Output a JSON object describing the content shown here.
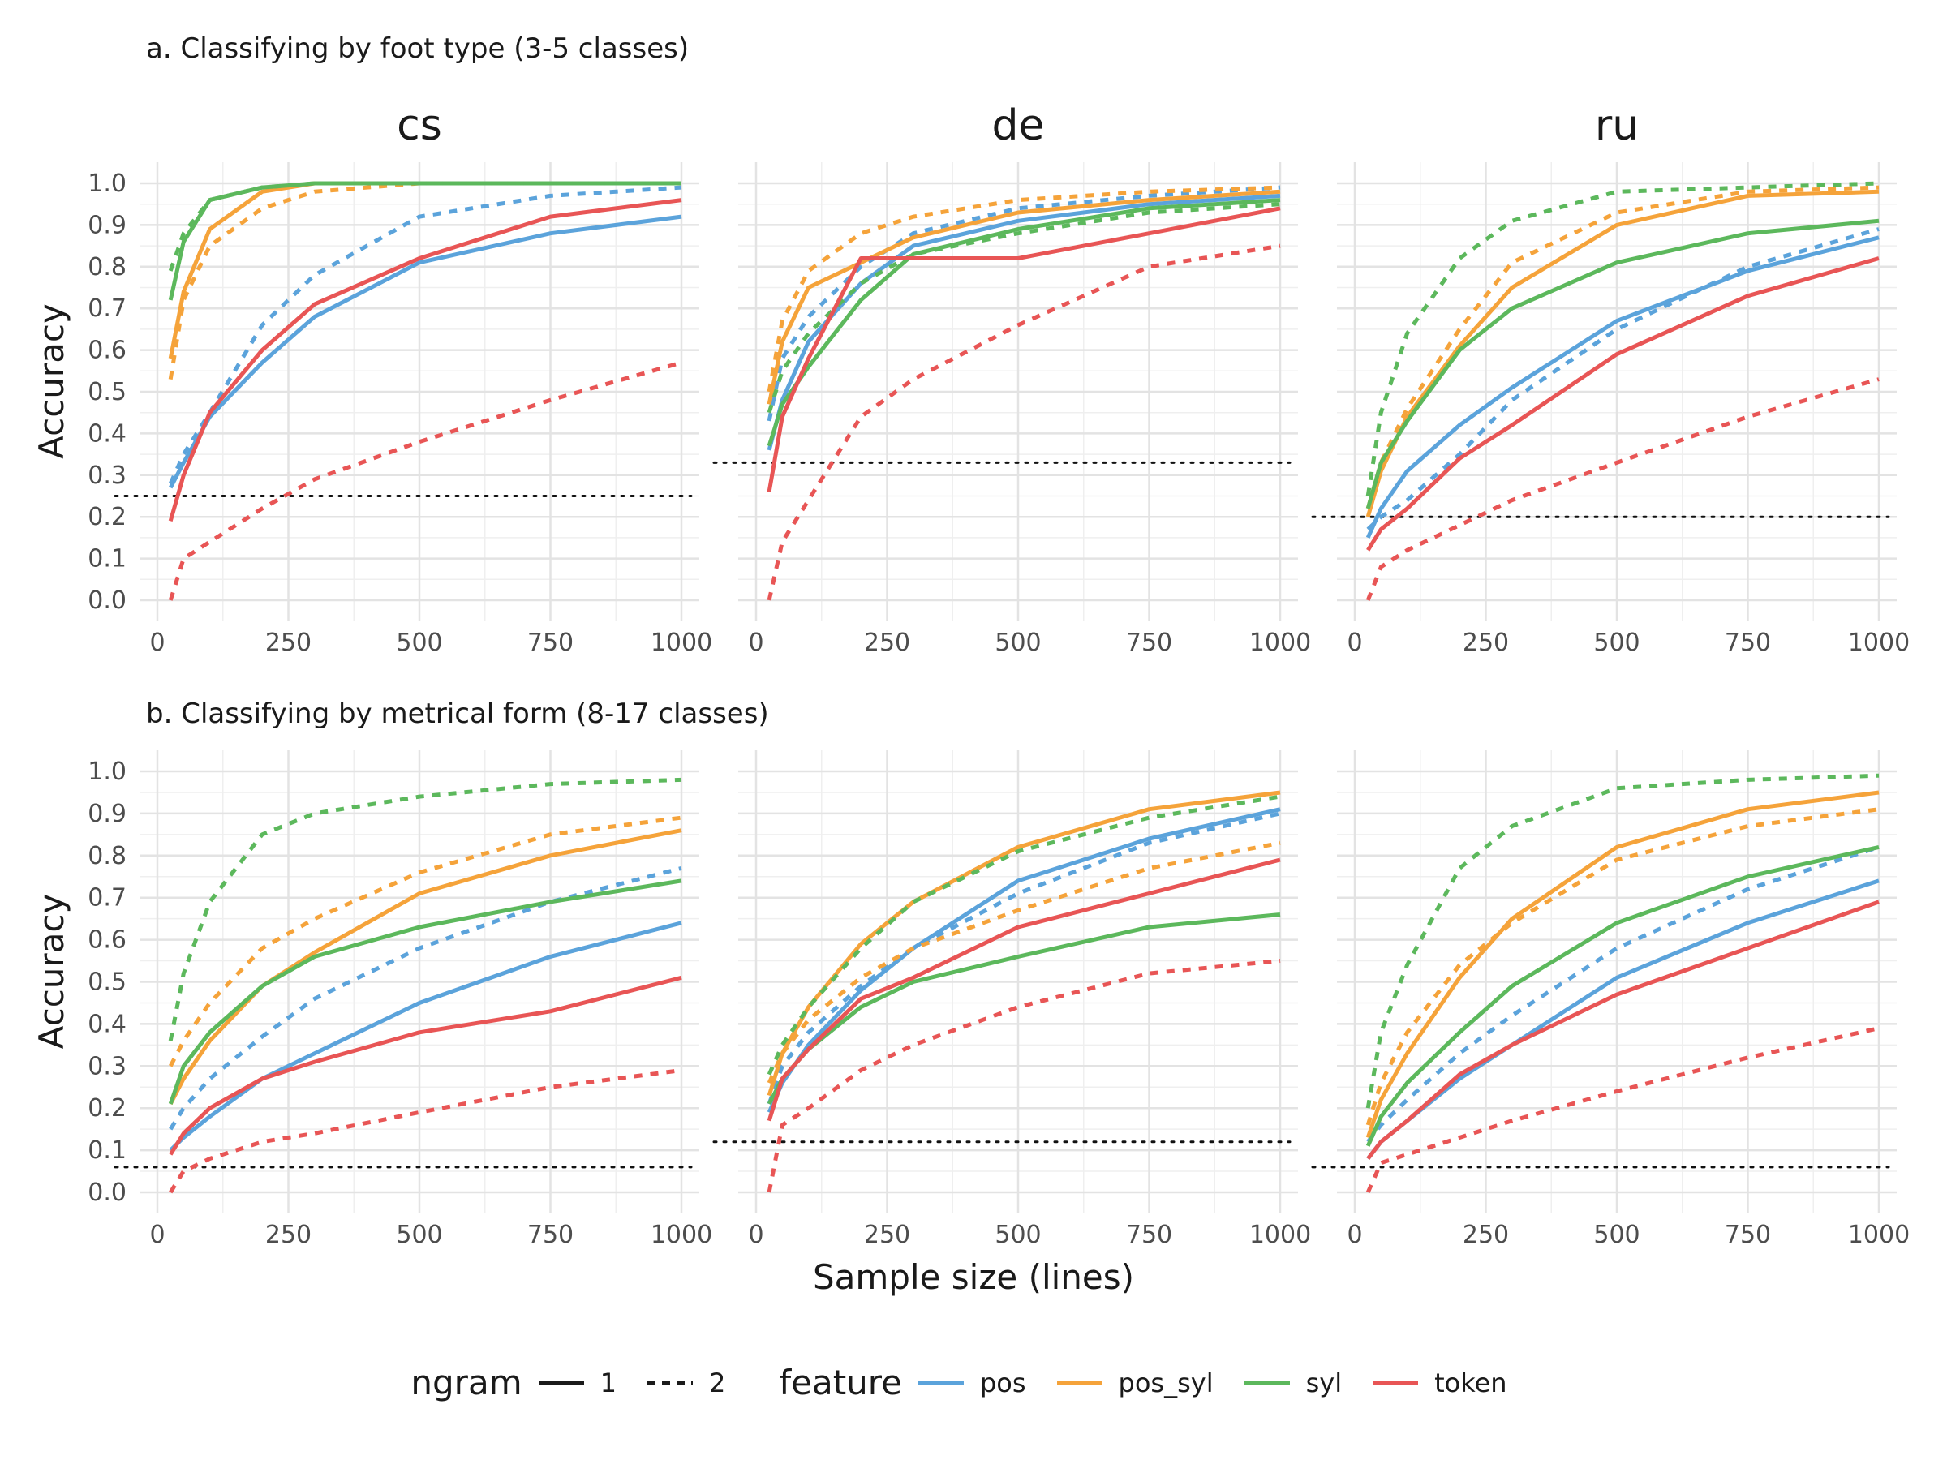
{
  "row_titles": [
    "a. Classifying by foot type (3-5 classes)",
    "b. Classifying by metrical form (8-17 classes)"
  ],
  "xlabel": "Sample size (lines)",
  "ylabel": "Accuracy",
  "legend": {
    "ngram_title": "ngram",
    "ngram_items": [
      {
        "label": "1",
        "linetype": "solid"
      },
      {
        "label": "2",
        "linetype": "dashed"
      }
    ],
    "feature_title": "feature",
    "feature_items": [
      {
        "label": "pos",
        "color": "#5BA3DB"
      },
      {
        "label": "pos_syl",
        "color": "#F5A33A"
      },
      {
        "label": "syl",
        "color": "#5CB85C"
      },
      {
        "label": "token",
        "color": "#E85555"
      }
    ]
  },
  "chart_data": [
    {
      "type": "line",
      "row": "a",
      "facet": "cs",
      "xlim": [
        0,
        1000
      ],
      "ylim": [
        0,
        1
      ],
      "x_ticks": [
        "0",
        "250",
        "500",
        "750",
        "1000"
      ],
      "y_ticks": [
        "0.0",
        "0.1",
        "0.2",
        "0.3",
        "0.4",
        "0.5",
        "0.6",
        "0.7",
        "0.8",
        "0.9",
        "1.0"
      ],
      "x": [
        25,
        50,
        100,
        200,
        300,
        500,
        750,
        1000
      ],
      "baseline": 0.25,
      "series": [
        {
          "name": "pos",
          "ngram": "1",
          "values": [
            0.27,
            0.33,
            0.44,
            0.57,
            0.68,
            0.81,
            0.88,
            0.92
          ]
        },
        {
          "name": "pos",
          "ngram": "2",
          "values": [
            0.28,
            0.35,
            0.45,
            0.66,
            0.78,
            0.92,
            0.97,
            0.99
          ]
        },
        {
          "name": "pos_syl",
          "ngram": "1",
          "values": [
            0.58,
            0.74,
            0.89,
            0.98,
            1.0,
            1.0,
            1.0,
            1.0
          ]
        },
        {
          "name": "pos_syl",
          "ngram": "2",
          "values": [
            0.53,
            0.72,
            0.85,
            0.94,
            0.98,
            1.0,
            1.0,
            1.0
          ]
        },
        {
          "name": "syl",
          "ngram": "1",
          "values": [
            0.72,
            0.86,
            0.96,
            0.99,
            1.0,
            1.0,
            1.0,
            1.0
          ]
        },
        {
          "name": "syl",
          "ngram": "2",
          "values": [
            0.79,
            0.88,
            0.96,
            0.99,
            1.0,
            1.0,
            1.0,
            1.0
          ]
        },
        {
          "name": "token",
          "ngram": "1",
          "values": [
            0.19,
            0.3,
            0.45,
            0.6,
            0.71,
            0.82,
            0.92,
            0.96
          ]
        },
        {
          "name": "token",
          "ngram": "2",
          "values": [
            0.0,
            0.1,
            0.14,
            0.22,
            0.29,
            0.38,
            0.48,
            0.57
          ]
        }
      ]
    },
    {
      "type": "line",
      "row": "a",
      "facet": "de",
      "xlim": [
        0,
        1000
      ],
      "ylim": [
        0,
        1
      ],
      "x_ticks": [
        "0",
        "250",
        "500",
        "750",
        "1000"
      ],
      "y_ticks": [],
      "x": [
        25,
        50,
        100,
        200,
        300,
        500,
        750,
        1000
      ],
      "baseline": 0.33,
      "series": [
        {
          "name": "pos",
          "ngram": "1",
          "values": [
            0.36,
            0.48,
            0.62,
            0.76,
            0.85,
            0.91,
            0.95,
            0.97
          ]
        },
        {
          "name": "pos",
          "ngram": "2",
          "values": [
            0.43,
            0.58,
            0.68,
            0.8,
            0.88,
            0.94,
            0.97,
            0.99
          ]
        },
        {
          "name": "pos_syl",
          "ngram": "1",
          "values": [
            0.47,
            0.62,
            0.75,
            0.81,
            0.87,
            0.93,
            0.96,
            0.98
          ]
        },
        {
          "name": "pos_syl",
          "ngram": "2",
          "values": [
            0.5,
            0.67,
            0.79,
            0.88,
            0.92,
            0.96,
            0.98,
            0.99
          ]
        },
        {
          "name": "syl",
          "ngram": "1",
          "values": [
            0.37,
            0.47,
            0.56,
            0.72,
            0.83,
            0.89,
            0.94,
            0.96
          ]
        },
        {
          "name": "syl",
          "ngram": "2",
          "values": [
            0.45,
            0.55,
            0.64,
            0.76,
            0.83,
            0.88,
            0.93,
            0.95
          ]
        },
        {
          "name": "token",
          "ngram": "1",
          "values": [
            0.26,
            0.44,
            0.58,
            0.82,
            0.82,
            0.82,
            0.88,
            0.94
          ]
        },
        {
          "name": "token",
          "ngram": "2",
          "values": [
            0.0,
            0.14,
            0.24,
            0.44,
            0.53,
            0.66,
            0.8,
            0.85
          ]
        }
      ]
    },
    {
      "type": "line",
      "row": "a",
      "facet": "ru",
      "xlim": [
        0,
        1000
      ],
      "ylim": [
        0,
        1
      ],
      "x_ticks": [
        "0",
        "250",
        "500",
        "750",
        "1000"
      ],
      "y_ticks": [],
      "x": [
        25,
        50,
        100,
        200,
        300,
        500,
        750,
        1000
      ],
      "baseline": 0.2,
      "series": [
        {
          "name": "pos",
          "ngram": "1",
          "values": [
            0.15,
            0.22,
            0.31,
            0.42,
            0.51,
            0.67,
            0.79,
            0.87
          ]
        },
        {
          "name": "pos",
          "ngram": "2",
          "values": [
            0.17,
            0.2,
            0.24,
            0.35,
            0.48,
            0.65,
            0.8,
            0.89
          ]
        },
        {
          "name": "pos_syl",
          "ngram": "1",
          "values": [
            0.2,
            0.31,
            0.44,
            0.61,
            0.75,
            0.9,
            0.97,
            0.98
          ]
        },
        {
          "name": "pos_syl",
          "ngram": "2",
          "values": [
            0.22,
            0.33,
            0.46,
            0.65,
            0.81,
            0.93,
            0.98,
            0.99
          ]
        },
        {
          "name": "syl",
          "ngram": "1",
          "values": [
            0.22,
            0.33,
            0.43,
            0.6,
            0.7,
            0.81,
            0.88,
            0.91
          ]
        },
        {
          "name": "syl",
          "ngram": "2",
          "values": [
            0.25,
            0.45,
            0.64,
            0.82,
            0.91,
            0.98,
            0.99,
            1.0
          ]
        },
        {
          "name": "token",
          "ngram": "1",
          "values": [
            0.12,
            0.17,
            0.22,
            0.34,
            0.42,
            0.59,
            0.73,
            0.82
          ]
        },
        {
          "name": "token",
          "ngram": "2",
          "values": [
            0.0,
            0.08,
            0.12,
            0.18,
            0.24,
            0.33,
            0.44,
            0.53
          ]
        }
      ]
    },
    {
      "type": "line",
      "row": "b",
      "facet": "cs",
      "xlim": [
        0,
        1000
      ],
      "ylim": [
        0,
        1
      ],
      "x_ticks": [
        "0",
        "250",
        "500",
        "750",
        "1000"
      ],
      "y_ticks": [
        "0.0",
        "0.1",
        "0.2",
        "0.3",
        "0.4",
        "0.5",
        "0.6",
        "0.7",
        "0.8",
        "0.9",
        "1.0"
      ],
      "x": [
        25,
        50,
        100,
        200,
        300,
        500,
        750,
        1000
      ],
      "baseline": 0.06,
      "series": [
        {
          "name": "pos",
          "ngram": "1",
          "values": [
            0.1,
            0.13,
            0.18,
            0.27,
            0.33,
            0.45,
            0.56,
            0.64
          ]
        },
        {
          "name": "pos",
          "ngram": "2",
          "values": [
            0.15,
            0.2,
            0.27,
            0.37,
            0.46,
            0.58,
            0.69,
            0.77
          ]
        },
        {
          "name": "pos_syl",
          "ngram": "1",
          "values": [
            0.21,
            0.27,
            0.36,
            0.49,
            0.57,
            0.71,
            0.8,
            0.86
          ]
        },
        {
          "name": "pos_syl",
          "ngram": "2",
          "values": [
            0.3,
            0.36,
            0.45,
            0.58,
            0.65,
            0.76,
            0.85,
            0.89
          ]
        },
        {
          "name": "syl",
          "ngram": "1",
          "values": [
            0.21,
            0.3,
            0.38,
            0.49,
            0.56,
            0.63,
            0.69,
            0.74
          ]
        },
        {
          "name": "syl",
          "ngram": "2",
          "values": [
            0.36,
            0.52,
            0.69,
            0.85,
            0.9,
            0.94,
            0.97,
            0.98
          ]
        },
        {
          "name": "token",
          "ngram": "1",
          "values": [
            0.09,
            0.14,
            0.2,
            0.27,
            0.31,
            0.38,
            0.43,
            0.51
          ]
        },
        {
          "name": "token",
          "ngram": "2",
          "values": [
            0.0,
            0.05,
            0.08,
            0.12,
            0.14,
            0.19,
            0.25,
            0.29
          ]
        }
      ]
    },
    {
      "type": "line",
      "row": "b",
      "facet": "de",
      "xlim": [
        0,
        1000
      ],
      "ylim": [
        0,
        1
      ],
      "x_ticks": [
        "0",
        "250",
        "500",
        "750",
        "1000"
      ],
      "y_ticks": [],
      "x": [
        25,
        50,
        100,
        200,
        300,
        500,
        750,
        1000
      ],
      "baseline": 0.12,
      "series": [
        {
          "name": "pos",
          "ngram": "1",
          "values": [
            0.19,
            0.26,
            0.35,
            0.48,
            0.58,
            0.74,
            0.84,
            0.91
          ]
        },
        {
          "name": "pos",
          "ngram": "2",
          "values": [
            0.21,
            0.3,
            0.38,
            0.49,
            0.58,
            0.71,
            0.83,
            0.9
          ]
        },
        {
          "name": "pos_syl",
          "ngram": "1",
          "values": [
            0.23,
            0.33,
            0.44,
            0.59,
            0.69,
            0.82,
            0.91,
            0.95
          ]
        },
        {
          "name": "pos_syl",
          "ngram": "2",
          "values": [
            0.26,
            0.33,
            0.41,
            0.51,
            0.58,
            0.67,
            0.77,
            0.83
          ]
        },
        {
          "name": "syl",
          "ngram": "1",
          "values": [
            0.21,
            0.27,
            0.34,
            0.44,
            0.5,
            0.56,
            0.63,
            0.66
          ]
        },
        {
          "name": "syl",
          "ngram": "2",
          "values": [
            0.28,
            0.35,
            0.44,
            0.58,
            0.69,
            0.81,
            0.89,
            0.94
          ]
        },
        {
          "name": "token",
          "ngram": "1",
          "values": [
            0.17,
            0.27,
            0.34,
            0.46,
            0.51,
            0.63,
            0.71,
            0.79
          ]
        },
        {
          "name": "token",
          "ngram": "2",
          "values": [
            0.0,
            0.16,
            0.2,
            0.29,
            0.35,
            0.44,
            0.52,
            0.55
          ]
        }
      ]
    },
    {
      "type": "line",
      "row": "b",
      "facet": "ru",
      "xlim": [
        0,
        1000
      ],
      "ylim": [
        0,
        1
      ],
      "x_ticks": [
        "0",
        "250",
        "500",
        "750",
        "1000"
      ],
      "y_ticks": [],
      "x": [
        25,
        50,
        100,
        200,
        300,
        500,
        750,
        1000
      ],
      "baseline": 0.06,
      "series": [
        {
          "name": "pos",
          "ngram": "1",
          "values": [
            0.08,
            0.12,
            0.17,
            0.27,
            0.35,
            0.51,
            0.64,
            0.74
          ]
        },
        {
          "name": "pos",
          "ngram": "2",
          "values": [
            0.12,
            0.16,
            0.22,
            0.33,
            0.42,
            0.58,
            0.72,
            0.82
          ]
        },
        {
          "name": "pos_syl",
          "ngram": "1",
          "values": [
            0.13,
            0.22,
            0.33,
            0.51,
            0.65,
            0.82,
            0.91,
            0.95
          ]
        },
        {
          "name": "pos_syl",
          "ngram": "2",
          "values": [
            0.16,
            0.26,
            0.38,
            0.54,
            0.64,
            0.79,
            0.87,
            0.91
          ]
        },
        {
          "name": "syl",
          "ngram": "1",
          "values": [
            0.11,
            0.18,
            0.26,
            0.38,
            0.49,
            0.64,
            0.75,
            0.82
          ]
        },
        {
          "name": "syl",
          "ngram": "2",
          "values": [
            0.2,
            0.38,
            0.54,
            0.77,
            0.87,
            0.96,
            0.98,
            0.99
          ]
        },
        {
          "name": "token",
          "ngram": "1",
          "values": [
            0.08,
            0.12,
            0.17,
            0.28,
            0.35,
            0.47,
            0.58,
            0.69
          ]
        },
        {
          "name": "token",
          "ngram": "2",
          "values": [
            0.0,
            0.07,
            0.09,
            0.13,
            0.17,
            0.24,
            0.32,
            0.39
          ]
        }
      ]
    }
  ]
}
